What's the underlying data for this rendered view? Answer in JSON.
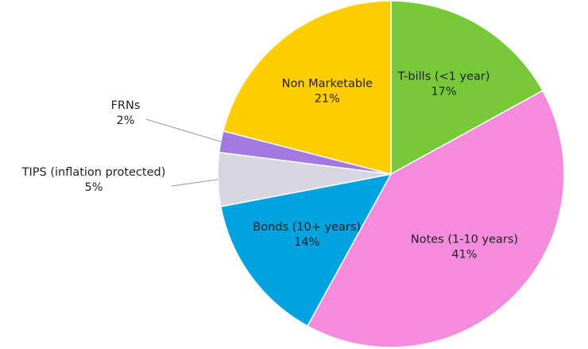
{
  "chart_data": {
    "type": "pie",
    "categories": [
      "T-bills (<1 year)",
      "Notes (1-10 years)",
      "Bonds (10+ years)",
      "TIPS (inflation protected)",
      "FRNs",
      "Non Marketable"
    ],
    "values": [
      17,
      41,
      14,
      5,
      2,
      21
    ],
    "value_labels": [
      "17%",
      "41%",
      "14%",
      "5%",
      "2%",
      "21%"
    ],
    "colors": [
      "#78c93a",
      "#f48bdd",
      "#00a3e0",
      "#d7d6e0",
      "#a378e0",
      "#ffcd00"
    ]
  }
}
